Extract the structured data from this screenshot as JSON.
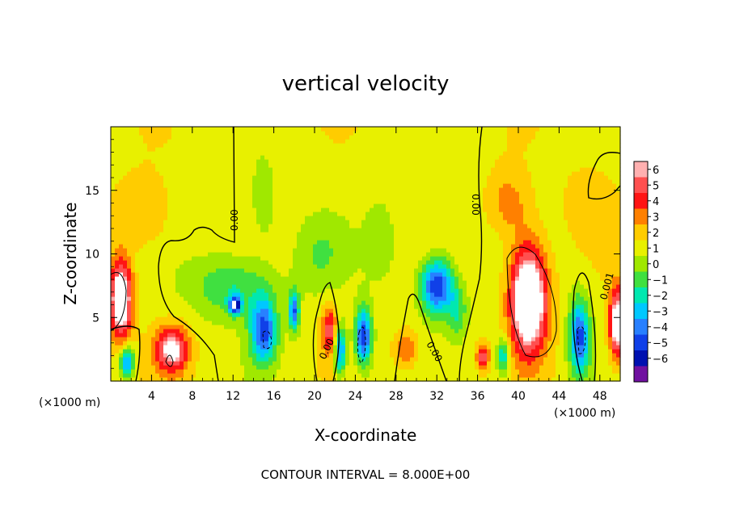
{
  "chart_data": {
    "type": "heatmap",
    "title": "vertical velocity",
    "xlabel": "X-coordinate",
    "ylabel": "Z-coordinate",
    "x_unit_left": "(×1000 m)",
    "x_unit_right": "(×1000 m)",
    "footer": "CONTOUR INTERVAL = 8.000E+00",
    "xlim": [
      0,
      50
    ],
    "ylim": [
      0,
      20
    ],
    "x_ticks": [
      {
        "value": 4,
        "label": "4"
      },
      {
        "value": 8,
        "label": "8"
      },
      {
        "value": 12,
        "label": "12"
      },
      {
        "value": 16,
        "label": "16"
      },
      {
        "value": 20,
        "label": "20"
      },
      {
        "value": 24,
        "label": "24"
      },
      {
        "value": 28,
        "label": "28"
      },
      {
        "value": 32,
        "label": "32"
      },
      {
        "value": 36,
        "label": "36"
      },
      {
        "value": 40,
        "label": "40"
      },
      {
        "value": 44,
        "label": "44"
      },
      {
        "value": 48,
        "label": "48"
      }
    ],
    "y_ticks": [
      {
        "value": 5,
        "label": "5"
      },
      {
        "value": 10,
        "label": "10"
      },
      {
        "value": 15,
        "label": "15"
      }
    ],
    "colorbar": {
      "ticks": [
        {
          "value": 6,
          "label": "6"
        },
        {
          "value": 5,
          "label": "5"
        },
        {
          "value": 4,
          "label": "4"
        },
        {
          "value": 3,
          "label": "3"
        },
        {
          "value": 2,
          "label": "2"
        },
        {
          "value": 1,
          "label": "1"
        },
        {
          "value": 0,
          "label": "0"
        },
        {
          "value": -1,
          "label": "−1"
        },
        {
          "value": -2,
          "label": "−2"
        },
        {
          "value": -3,
          "label": "−3"
        },
        {
          "value": -4,
          "label": "−4"
        },
        {
          "value": -5,
          "label": "−5"
        },
        {
          "value": -6,
          "label": "−6"
        }
      ],
      "colors": [
        "#ffb0b0",
        "#ff5050",
        "#ff1414",
        "#ff8000",
        "#ffcc00",
        "#e8f000",
        "#a0e800",
        "#40e040",
        "#00e8b0",
        "#00c8ff",
        "#2880ff",
        "#1040e8",
        "#0010b0",
        "#7010a0"
      ]
    },
    "contour_labels": [
      "0.00",
      "0.00",
      "0.00",
      "0.00",
      "0.001"
    ],
    "features": [
      {
        "x": 1.0,
        "z": 6.5,
        "sx": 1.1,
        "sz": 3.0,
        "w": 7.5
      },
      {
        "x": 1.6,
        "z": 1.5,
        "sx": 0.7,
        "sz": 1.2,
        "w": -5.5
      },
      {
        "x": 6.0,
        "z": 2.5,
        "sx": 1.6,
        "sz": 1.8,
        "w": 5.5
      },
      {
        "x": 3.0,
        "z": 13.0,
        "sx": 3.0,
        "sz": 3.0,
        "w": 1.5
      },
      {
        "x": 12.0,
        "z": 7.5,
        "sx": 4.0,
        "sz": 2.5,
        "w": -2.8
      },
      {
        "x": 12.2,
        "z": 6.0,
        "sx": 0.6,
        "sz": 0.7,
        "w": -6.5
      },
      {
        "x": 15.0,
        "z": 4.0,
        "sx": 1.3,
        "sz": 2.5,
        "w": -6.0
      },
      {
        "x": 15.0,
        "z": 14.0,
        "sx": 1.2,
        "sz": 3.0,
        "w": -1.6
      },
      {
        "x": 18.0,
        "z": 5.5,
        "sx": 0.5,
        "sz": 1.6,
        "w": -5.5
      },
      {
        "x": 21.5,
        "z": 4.0,
        "sx": 0.8,
        "sz": 2.0,
        "w": 4.0
      },
      {
        "x": 22.5,
        "z": 2.5,
        "sx": 0.6,
        "sz": 2.0,
        "w": -5.5
      },
      {
        "x": 24.8,
        "z": 3.5,
        "sx": 0.8,
        "sz": 2.3,
        "w": -6.5
      },
      {
        "x": 20.5,
        "z": 10.0,
        "sx": 2.5,
        "sz": 3.0,
        "w": -1.4
      },
      {
        "x": 26.5,
        "z": 11.0,
        "sx": 1.5,
        "sz": 3.0,
        "w": -1.5
      },
      {
        "x": 29.0,
        "z": 2.5,
        "sx": 1.2,
        "sz": 1.5,
        "w": 2.5
      },
      {
        "x": 32.0,
        "z": 7.5,
        "sx": 1.6,
        "sz": 2.2,
        "w": -6.8
      },
      {
        "x": 34.0,
        "z": 5.5,
        "sx": 1.0,
        "sz": 2.0,
        "w": -2.5
      },
      {
        "x": 36.5,
        "z": 2.0,
        "sx": 0.6,
        "sz": 1.0,
        "w": 4.0
      },
      {
        "x": 38.5,
        "z": 2.0,
        "sx": 0.6,
        "sz": 1.5,
        "w": -4.0
      },
      {
        "x": 41.0,
        "z": 6.5,
        "sx": 1.8,
        "sz": 4.2,
        "w": 8.5
      },
      {
        "x": 39.0,
        "z": 14.0,
        "sx": 2.0,
        "sz": 2.5,
        "w": 2.0
      },
      {
        "x": 46.0,
        "z": 3.5,
        "sx": 1.0,
        "sz": 3.0,
        "w": -6.0
      },
      {
        "x": 49.7,
        "z": 4.5,
        "sx": 0.8,
        "sz": 2.8,
        "w": 6.5
      },
      {
        "x": 47.0,
        "z": 14.0,
        "sx": 2.5,
        "sz": 3.0,
        "w": 1.2
      }
    ]
  }
}
